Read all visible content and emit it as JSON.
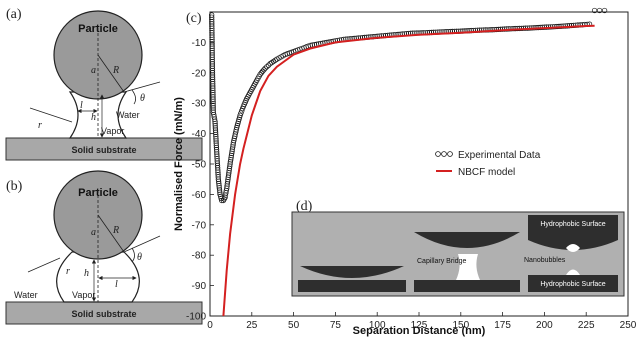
{
  "panels": {
    "a": {
      "label": "(a)",
      "particle": "Particle",
      "substrate": "Solid substrate",
      "outer_medium": "Water",
      "bridge_medium": "Vapor",
      "symbols": {
        "a": "a",
        "R": "R",
        "theta": "θ",
        "r": "r",
        "l": "l",
        "h": "h"
      }
    },
    "b": {
      "label": "(b)",
      "particle": "Particle",
      "substrate": "Solid substrate",
      "outer_medium": "Water",
      "bridge_medium": "Vapor",
      "symbols": {
        "a": "a",
        "R": "R",
        "theta": "θ",
        "r": "r",
        "l": "l",
        "h": "h"
      }
    },
    "c": {
      "label": "(c)"
    },
    "d": {
      "label": "(d)",
      "labels": {
        "hydrophobic_top": "Hydrophobic Surface",
        "capillary": "Capillary Bridge",
        "nanobubbles": "Nanobubbles",
        "hydrophobic_bottom": "Hydrophobic Surface"
      }
    }
  },
  "colors": {
    "experimental": "#111111",
    "model": "#d42020",
    "gray": "#9a9a9a",
    "dark": "#2e2e2e"
  },
  "chart_data": {
    "type": "line",
    "xlabel": "Separation Distance (nm)",
    "ylabel": "Normalised Force (mN/m)",
    "xlim": [
      0,
      250
    ],
    "ylim": [
      -100,
      0
    ],
    "xticks": [
      0,
      25,
      50,
      75,
      100,
      125,
      150,
      175,
      200,
      225,
      250
    ],
    "yticks": [
      -10,
      -20,
      -30,
      -40,
      -50,
      -60,
      -70,
      -80,
      -90,
      -100
    ],
    "legend_position": "center-right",
    "series": [
      {
        "name": "Experimental Data",
        "style": "open-circle",
        "x": [
          1,
          1.5,
          2,
          3,
          4,
          5,
          6,
          7,
          8,
          9,
          10,
          12,
          14,
          16,
          18,
          20,
          22,
          25,
          28,
          30,
          33,
          36,
          40,
          45,
          50,
          55,
          60,
          65,
          70,
          75,
          80,
          90,
          100,
          110,
          120,
          130,
          140,
          150,
          160,
          170,
          180,
          190,
          200,
          210,
          220,
          227,
          230,
          233,
          236
        ],
        "y": [
          -1,
          -20,
          -33,
          -36,
          -46,
          -55,
          -60,
          -62,
          -62,
          -61,
          -58,
          -50,
          -43,
          -38,
          -34,
          -31,
          -28.5,
          -25.5,
          -22.5,
          -20.5,
          -18.5,
          -17,
          -15.5,
          -14,
          -13,
          -12,
          -11,
          -10.5,
          -10,
          -9.5,
          -9,
          -8.5,
          -8,
          -7.5,
          -7,
          -6.8,
          -6.5,
          -6.3,
          -6,
          -5.8,
          -5.5,
          -5.3,
          -5,
          -4.7,
          -4.3,
          -4,
          2,
          2,
          2
        ]
      },
      {
        "name": "NBCF model",
        "style": "line",
        "x": [
          8,
          10,
          12,
          15,
          18,
          20,
          25,
          30,
          35,
          40,
          50,
          60,
          75,
          100,
          125,
          150,
          175,
          200,
          225,
          230
        ],
        "y": [
          -100,
          -85,
          -73,
          -60,
          -50,
          -45,
          -34,
          -26,
          -21,
          -18,
          -14,
          -12,
          -10,
          -8.5,
          -7.5,
          -6.8,
          -6,
          -5.3,
          -4.6,
          -4.5
        ]
      }
    ]
  }
}
